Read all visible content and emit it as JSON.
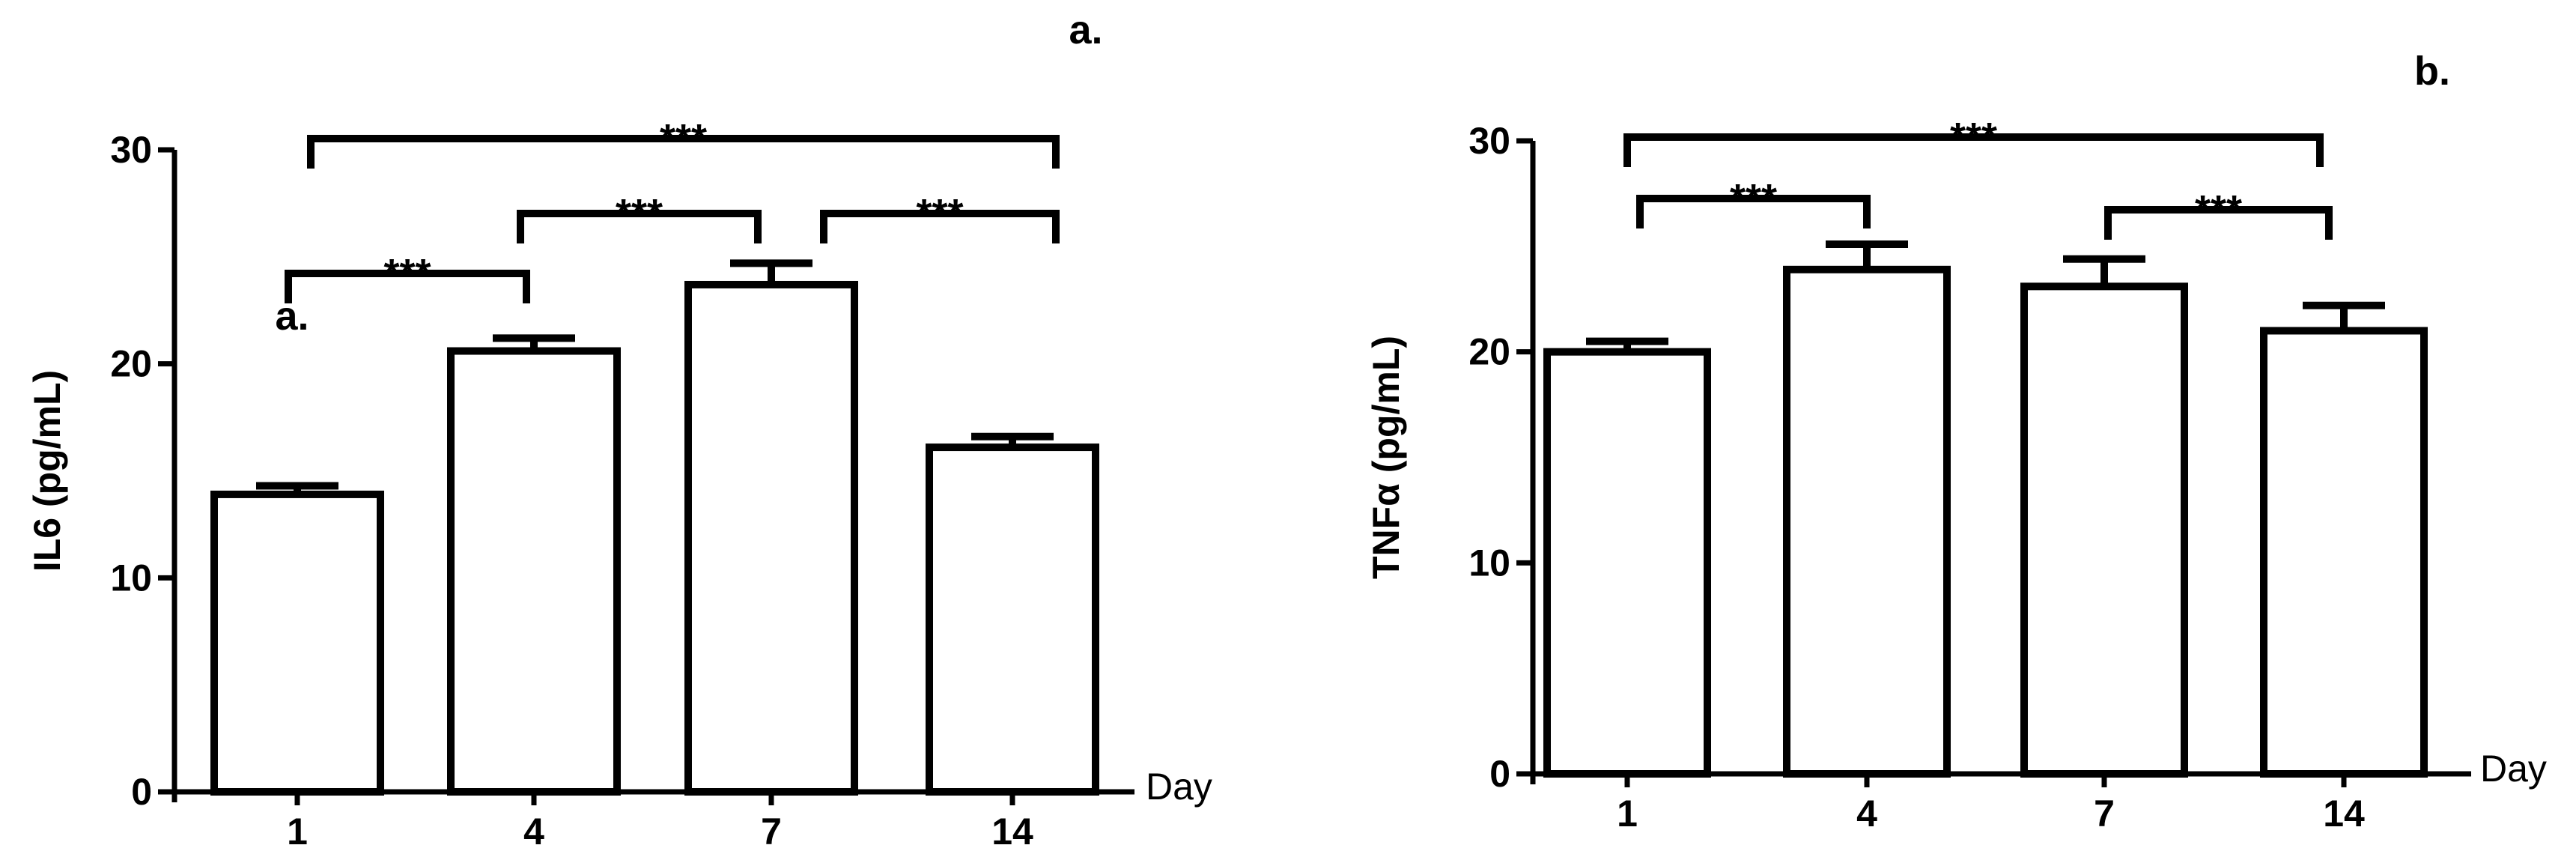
{
  "chart_data": [
    {
      "type": "bar",
      "panel_label": "a.",
      "inner_label": "a.",
      "ylabel": "IL6 (pg/mL)",
      "xlabel": "Day",
      "categories": [
        "1",
        "4",
        "7",
        "14"
      ],
      "values": [
        13.9,
        20.6,
        23.7,
        16.1
      ],
      "errors": [
        0.4,
        0.6,
        1.0,
        0.5
      ],
      "ylim": [
        0,
        30
      ],
      "yticks": [
        "0",
        "10",
        "20",
        "30"
      ],
      "significance": [
        {
          "from": "1",
          "to": "4",
          "label": "***"
        },
        {
          "from": "4",
          "to": "7",
          "label": "***"
        },
        {
          "from": "7",
          "to": "14",
          "label": "***"
        },
        {
          "from": "1",
          "to": "14",
          "label": "***"
        }
      ]
    },
    {
      "type": "bar",
      "panel_label": "b.",
      "ylabel": "TNFα (pg/mL)",
      "xlabel": "Day",
      "categories": [
        "1",
        "4",
        "7",
        "14"
      ],
      "values": [
        20.0,
        23.9,
        23.1,
        21.0
      ],
      "errors": [
        0.5,
        1.2,
        1.3,
        1.2
      ],
      "ylim": [
        0,
        30
      ],
      "yticks": [
        "0",
        "10",
        "20",
        "30"
      ],
      "significance": [
        {
          "from": "1",
          "to": "4",
          "label": "***"
        },
        {
          "from": "7",
          "to": "14",
          "label": "***"
        },
        {
          "from": "1",
          "to": "14",
          "label": "***"
        }
      ]
    }
  ]
}
